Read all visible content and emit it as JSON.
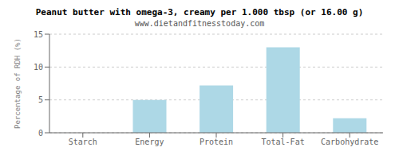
{
  "chart_data": {
    "type": "bar",
    "title": "Peanut butter with omega-3, creamy per 1.000 tbsp (or 16.00 g)",
    "subtitle": "www.dietandfitnesstoday.com",
    "categories": [
      "Starch",
      "Energy",
      "Protein",
      "Total-Fat",
      "Carbohydrate"
    ],
    "values": [
      0,
      5.0,
      7.2,
      13.0,
      2.2
    ],
    "color": "#add8e6",
    "ylabel": "Percentage of RDH (%)",
    "ylim": [
      0,
      15
    ],
    "yticks": [
      0,
      5,
      10,
      15
    ],
    "grid": true
  }
}
